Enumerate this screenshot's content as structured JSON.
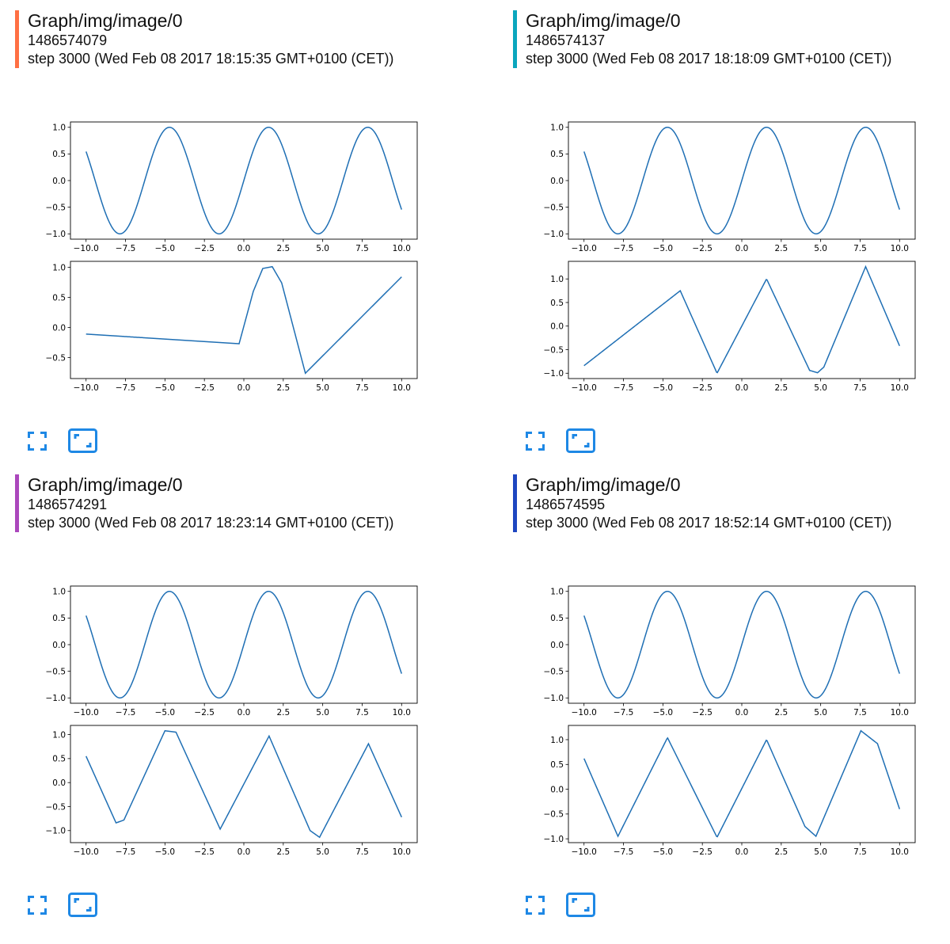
{
  "accent_color": "#1e88e5",
  "line_color": "#1f6fb4",
  "cards": [
    {
      "title": "Graph/img/image/0",
      "run": "1486574079",
      "step": "step 3000 (Wed Feb 08 2017 18:15:35 GMT+0100 (CET))",
      "bar_color": "#ff7043",
      "fit_icon": "fullscreen-icon",
      "actual_size_icon": "actual-size-icon"
    },
    {
      "title": "Graph/img/image/0",
      "run": "1486574137",
      "step": "step 3000 (Wed Feb 08 2017 18:18:09 GMT+0100 (CET))",
      "bar_color": "#0aa6bd",
      "fit_icon": "fullscreen-icon",
      "actual_size_icon": "actual-size-icon"
    },
    {
      "title": "Graph/img/image/0",
      "run": "1486574291",
      "step": "step 3000 (Wed Feb 08 2017 18:23:14 GMT+0100 (CET))",
      "bar_color": "#ab47bc",
      "fit_icon": "fullscreen-icon",
      "actual_size_icon": "actual-size-icon"
    },
    {
      "title": "Graph/img/image/0",
      "run": "1486574595",
      "step": "step 3000 (Wed Feb 08 2017 18:52:14 GMT+0100 (CET))",
      "bar_color": "#1e46c0",
      "fit_icon": "fullscreen-icon",
      "actual_size_icon": "actual-size-icon"
    }
  ],
  "chart_data": [
    {
      "card": 0,
      "panel": "top",
      "type": "line",
      "x": [
        -10,
        -7.85,
        -4.71,
        -1.57,
        1.57,
        4.71,
        7.85,
        10
      ],
      "values": [
        0.54,
        -1.0,
        1.0,
        -1.0,
        1.0,
        -1.0,
        1.0,
        -0.54
      ],
      "series_fn": "sin",
      "xlim": [
        -10,
        10
      ],
      "ylim": [
        -1.0,
        1.0
      ],
      "xticks": [
        "−10.0",
        "−7.5",
        "−5.0",
        "−2.5",
        "0.0",
        "2.5",
        "5.0",
        "7.5",
        "10.0"
      ],
      "yticks": [
        "−1.0",
        "−0.5",
        "0.0",
        "0.5",
        "1.0"
      ],
      "title": "",
      "xlabel": "",
      "ylabel": ""
    },
    {
      "card": 0,
      "panel": "bottom",
      "type": "line",
      "x": [
        -10,
        -0.3,
        0.6,
        1.2,
        1.8,
        2.4,
        3.9,
        10
      ],
      "values": [
        -0.11,
        -0.27,
        0.6,
        0.98,
        1.01,
        0.74,
        -0.76,
        0.84
      ],
      "xlim": [
        -10,
        10
      ],
      "ylim": [
        -0.8,
        1.0
      ],
      "xticks": [
        "−10.0",
        "−7.5",
        "−5.0",
        "−2.5",
        "0.0",
        "2.5",
        "5.0",
        "7.5",
        "10.0"
      ],
      "yticks": [
        "−0.5",
        "0.0",
        "0.5",
        "1.0"
      ]
    },
    {
      "card": 1,
      "panel": "top",
      "type": "line",
      "x": [
        -10,
        -7.85,
        -4.71,
        -1.57,
        1.57,
        4.71,
        7.85,
        10
      ],
      "values": [
        0.54,
        -1.0,
        1.0,
        -1.0,
        1.0,
        -1.0,
        1.0,
        -0.54
      ],
      "series_fn": "sin",
      "xlim": [
        -10,
        10
      ],
      "ylim": [
        -1.0,
        1.0
      ],
      "xticks": [
        "−10.0",
        "−7.5",
        "−5.0",
        "−2.5",
        "0.0",
        "2.5",
        "5.0",
        "7.5",
        "10.0"
      ],
      "yticks": [
        "−1.0",
        "−0.5",
        "0.0",
        "0.5",
        "1.0"
      ]
    },
    {
      "card": 1,
      "panel": "bottom",
      "type": "line",
      "x": [
        -10,
        -3.9,
        -1.57,
        1.57,
        4.3,
        4.8,
        5.2,
        7.85,
        10
      ],
      "values": [
        -0.84,
        0.75,
        -1.0,
        1.0,
        -0.94,
        -0.99,
        -0.87,
        1.26,
        -0.42
      ],
      "xlim": [
        -10,
        10
      ],
      "ylim": [
        -1.0,
        1.26
      ],
      "xticks": [
        "−10.0",
        "−7.5",
        "−5.0",
        "−2.5",
        "0.0",
        "2.5",
        "5.0",
        "7.5",
        "10.0"
      ],
      "yticks": [
        "−1.0",
        "−0.5",
        "0.0",
        "0.5",
        "1.0"
      ]
    },
    {
      "card": 2,
      "panel": "top",
      "type": "line",
      "x": [
        -10,
        -7.85,
        -4.71,
        -1.57,
        1.57,
        4.71,
        7.85,
        10
      ],
      "values": [
        0.54,
        -1.0,
        1.0,
        -1.0,
        1.0,
        -1.0,
        1.0,
        -0.54
      ],
      "series_fn": "sin",
      "xlim": [
        -10,
        10
      ],
      "ylim": [
        -1.0,
        1.0
      ],
      "xticks": [
        "−10.0",
        "−7.5",
        "−5.0",
        "−2.5",
        "0.0",
        "2.5",
        "5.0",
        "7.5",
        "10.0"
      ],
      "yticks": [
        "−1.0",
        "−0.5",
        "0.0",
        "0.5",
        "1.0"
      ]
    },
    {
      "card": 2,
      "panel": "bottom",
      "type": "line",
      "x": [
        -10,
        -8.1,
        -7.6,
        -5.0,
        -4.3,
        -1.5,
        1.6,
        4.2,
        4.8,
        7.9,
        10
      ],
      "values": [
        0.55,
        -0.84,
        -0.78,
        1.08,
        1.05,
        -0.97,
        0.97,
        -1.0,
        -1.14,
        0.81,
        -0.72
      ],
      "xlim": [
        -10,
        10
      ],
      "ylim": [
        -1.14,
        1.08
      ],
      "xticks": [
        "−10.0",
        "−7.5",
        "−5.0",
        "−2.5",
        "0.0",
        "2.5",
        "5.0",
        "7.5",
        "10.0"
      ],
      "yticks": [
        "−1.0",
        "−0.5",
        "0.0",
        "0.5",
        "1.0"
      ]
    },
    {
      "card": 3,
      "panel": "top",
      "type": "line",
      "x": [
        -10,
        -7.85,
        -4.71,
        -1.57,
        1.57,
        4.71,
        7.85,
        10
      ],
      "values": [
        0.54,
        -1.0,
        1.0,
        -1.0,
        1.0,
        -1.0,
        1.0,
        -0.54
      ],
      "series_fn": "sin",
      "xlim": [
        -10,
        10
      ],
      "ylim": [
        -1.0,
        1.0
      ],
      "xticks": [
        "−10.0",
        "−7.5",
        "−5.0",
        "−2.5",
        "0.0",
        "2.5",
        "5.0",
        "7.5",
        "10.0"
      ],
      "yticks": [
        "−1.0",
        "−0.5",
        "0.0",
        "0.5",
        "1.0"
      ]
    },
    {
      "card": 3,
      "panel": "bottom",
      "type": "line",
      "x": [
        -10,
        -7.85,
        -4.71,
        -1.57,
        1.57,
        4.0,
        4.7,
        7.55,
        8.6,
        10
      ],
      "values": [
        0.62,
        -0.95,
        1.04,
        -0.97,
        1.0,
        -0.75,
        -0.95,
        1.18,
        0.92,
        -0.4
      ],
      "xlim": [
        -10,
        10
      ],
      "ylim": [
        -1.0,
        1.18
      ],
      "xticks": [
        "−10.0",
        "−7.5",
        "−5.0",
        "−2.5",
        "0.0",
        "2.5",
        "5.0",
        "7.5",
        "10.0"
      ],
      "yticks": [
        "−1.0",
        "−0.5",
        "0.0",
        "0.5",
        "1.0"
      ]
    }
  ]
}
